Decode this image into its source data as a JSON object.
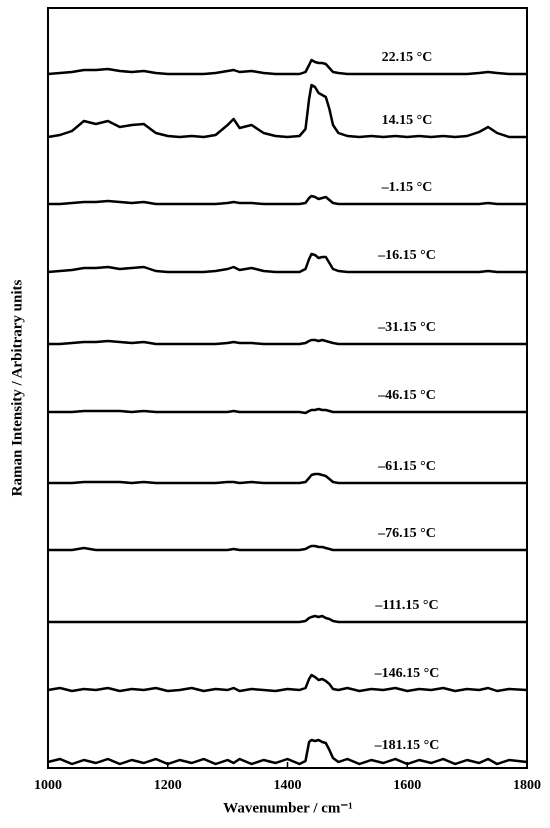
{
  "chart_data": {
    "type": "line",
    "x_label": "Wavenumber / cm⁻¹",
    "y_label": "Raman Intensity / Arbitrary units",
    "x": [
      1000,
      1020,
      1040,
      1060,
      1080,
      1100,
      1120,
      1140,
      1160,
      1180,
      1200,
      1220,
      1240,
      1260,
      1280,
      1300,
      1310,
      1320,
      1340,
      1360,
      1380,
      1400,
      1420,
      1430,
      1436,
      1440,
      1446,
      1452,
      1458,
      1464,
      1470,
      1476,
      1485,
      1500,
      1520,
      1540,
      1560,
      1580,
      1600,
      1620,
      1640,
      1660,
      1680,
      1700,
      1720,
      1735,
      1750,
      1770,
      1800
    ],
    "xlim": [
      1000,
      1800
    ],
    "xticks": [
      1000,
      1200,
      1400,
      1600,
      1800
    ],
    "ylim": [
      0,
      760
    ],
    "series": [
      {
        "name": "22.15 °C",
        "color": "#000000",
        "values": [
          694,
          695,
          696,
          698,
          698,
          699,
          697,
          696,
          697,
          695,
          694,
          694,
          694,
          694,
          695,
          697,
          698,
          696,
          697,
          695,
          694,
          694,
          694,
          696,
          703,
          708,
          706,
          705,
          705,
          704,
          700,
          696,
          695,
          694,
          694,
          694,
          694,
          694,
          694,
          694,
          694,
          694,
          694,
          694,
          695,
          696,
          695,
          694,
          694
        ]
      },
      {
        "name": "14.15 °C",
        "color": "#000000",
        "values": [
          631,
          633,
          637,
          647,
          644,
          647,
          641,
          643,
          644,
          635,
          632,
          631,
          632,
          631,
          633,
          643,
          649,
          640,
          643,
          635,
          632,
          631,
          632,
          639,
          669,
          683,
          681,
          675,
          673,
          671,
          659,
          643,
          635,
          632,
          631,
          632,
          631,
          632,
          631,
          632,
          631,
          632,
          631,
          632,
          636,
          641,
          635,
          631,
          631
        ]
      },
      {
        "name": "–1.15 °C",
        "color": "#000000",
        "values": [
          564,
          564,
          565,
          566,
          566,
          567,
          566,
          565,
          566,
          564,
          564,
          564,
          564,
          564,
          564,
          565,
          566,
          565,
          565,
          564,
          564,
          564,
          564,
          565,
          570,
          572,
          571,
          569,
          570,
          571,
          568,
          565,
          564,
          564,
          564,
          564,
          564,
          564,
          564,
          564,
          564,
          564,
          564,
          564,
          564,
          565,
          564,
          564,
          564
        ]
      },
      {
        "name": "–16.15 °C",
        "color": "#000000",
        "values": [
          496,
          497,
          498,
          500,
          500,
          501,
          499,
          500,
          501,
          497,
          496,
          496,
          496,
          496,
          497,
          499,
          501,
          498,
          500,
          497,
          496,
          496,
          496,
          499,
          509,
          514,
          513,
          510,
          511,
          511,
          505,
          499,
          497,
          496,
          496,
          496,
          496,
          496,
          496,
          496,
          496,
          496,
          496,
          496,
          496,
          497,
          496,
          496,
          496
        ]
      },
      {
        "name": "–31.15 °C",
        "color": "#000000",
        "values": [
          424,
          424,
          425,
          426,
          426,
          427,
          426,
          425,
          426,
          424,
          424,
          424,
          424,
          424,
          424,
          425,
          426,
          425,
          425,
          424,
          424,
          424,
          424,
          425,
          427,
          428,
          428,
          427,
          428,
          427,
          426,
          425,
          424,
          424,
          424,
          424,
          424,
          424,
          424,
          424,
          424,
          424,
          424,
          424,
          424,
          424,
          424,
          424,
          424
        ]
      },
      {
        "name": "–46.15 °C",
        "color": "#000000",
        "values": [
          356,
          356,
          356,
          357,
          357,
          357,
          357,
          356,
          357,
          356,
          356,
          356,
          356,
          356,
          356,
          356,
          357,
          356,
          356,
          356,
          356,
          356,
          356,
          355,
          357,
          358,
          358,
          359,
          358,
          358,
          357,
          356,
          356,
          356,
          356,
          356,
          356,
          356,
          356,
          356,
          356,
          356,
          356,
          356,
          356,
          356,
          356,
          356,
          356
        ]
      },
      {
        "name": "–61.15 °C",
        "color": "#000000",
        "values": [
          285,
          285,
          285,
          286,
          286,
          286,
          286,
          285,
          286,
          285,
          285,
          285,
          285,
          285,
          285,
          286,
          286,
          285,
          286,
          285,
          285,
          285,
          285,
          286,
          290,
          293,
          294,
          294,
          293,
          292,
          289,
          286,
          285,
          285,
          285,
          285,
          285,
          285,
          285,
          285,
          285,
          285,
          285,
          285,
          285,
          285,
          285,
          285,
          285
        ]
      },
      {
        "name": "–76.15 °C",
        "color": "#000000",
        "values": [
          218,
          218,
          218,
          220,
          218,
          218,
          218,
          218,
          218,
          218,
          218,
          218,
          218,
          218,
          218,
          218,
          219,
          218,
          218,
          218,
          218,
          218,
          218,
          219,
          221,
          222,
          222,
          221,
          221,
          220,
          219,
          218,
          218,
          218,
          218,
          218,
          218,
          218,
          218,
          218,
          218,
          218,
          218,
          218,
          218,
          218,
          218,
          218,
          218
        ]
      },
      {
        "name": "–111.15 °C",
        "color": "#000000",
        "values": [
          146,
          146,
          146,
          146,
          146,
          146,
          146,
          146,
          146,
          146,
          146,
          146,
          146,
          146,
          146,
          146,
          146,
          146,
          146,
          146,
          146,
          146,
          146,
          147,
          150,
          151,
          152,
          151,
          152,
          150,
          149,
          147,
          146,
          146,
          146,
          146,
          146,
          146,
          146,
          146,
          146,
          146,
          146,
          146,
          146,
          146,
          146,
          146,
          146
        ]
      },
      {
        "name": "–146.15 °C",
        "color": "#000000",
        "values": [
          78,
          80,
          77,
          79,
          78,
          80,
          77,
          79,
          78,
          80,
          77,
          78,
          80,
          77,
          79,
          78,
          80,
          77,
          79,
          78,
          77,
          79,
          78,
          80,
          89,
          93,
          91,
          88,
          89,
          87,
          84,
          79,
          78,
          80,
          77,
          79,
          78,
          80,
          77,
          79,
          78,
          80,
          77,
          79,
          78,
          80,
          77,
          79,
          78
        ]
      },
      {
        "name": "–181.15 °C",
        "color": "#000000",
        "values": [
          6,
          9,
          4,
          8,
          5,
          9,
          4,
          8,
          5,
          9,
          4,
          8,
          5,
          9,
          4,
          8,
          5,
          9,
          4,
          8,
          5,
          9,
          4,
          7,
          26,
          28,
          27,
          28,
          26,
          25,
          18,
          10,
          6,
          9,
          4,
          8,
          5,
          9,
          4,
          8,
          5,
          9,
          4,
          8,
          5,
          9,
          4,
          8,
          6
        ]
      }
    ]
  }
}
